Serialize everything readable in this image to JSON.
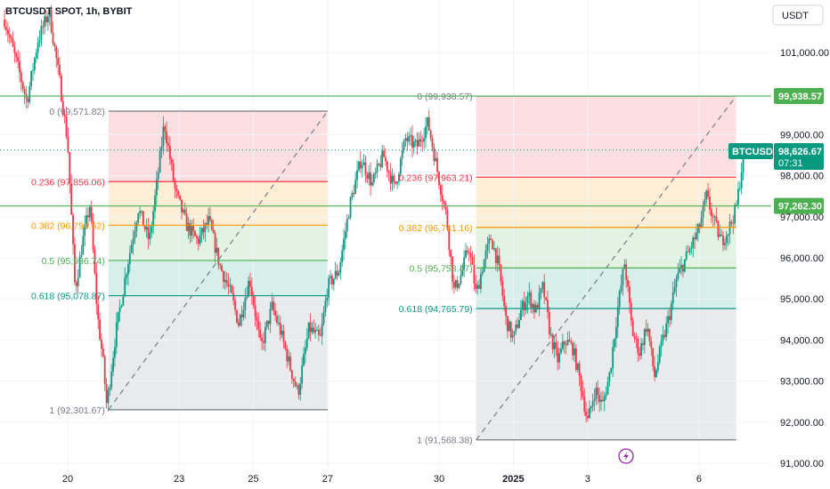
{
  "chart_data": {
    "type": "candlestick",
    "title": "BTCUSDT SPOT, 1h, BYBIT",
    "currency_button": "USDT",
    "symbol_tag": "BTCUSDT",
    "current_price": "98,626.67",
    "countdown": "07:31",
    "price_lines": [
      {
        "value": 99938.57,
        "label": "99,938.57",
        "color": "#4caf50"
      },
      {
        "value": 97262.3,
        "label": "97,262.30",
        "color": "#4caf50"
      }
    ],
    "y_ticks": [
      {
        "value": 101000,
        "label": "101,000.00"
      },
      {
        "value": 99000,
        "label": "99,000.00"
      },
      {
        "value": 98000,
        "label": "98,000.00"
      },
      {
        "value": 97000,
        "label": "97,000.00"
      },
      {
        "value": 96000,
        "label": "96,000.00"
      },
      {
        "value": 95000,
        "label": "95,000.00"
      },
      {
        "value": 94000,
        "label": "94,000.00"
      },
      {
        "value": 93000,
        "label": "93,000.00"
      },
      {
        "value": 92000,
        "label": "92,000.00"
      },
      {
        "value": 91000,
        "label": "91,000.00"
      }
    ],
    "ylim": [
      90800,
      102200
    ],
    "x_ticks": [
      {
        "day": 20,
        "label": "20",
        "bold": false
      },
      {
        "day": 23,
        "label": "23",
        "bold": false
      },
      {
        "day": 25,
        "label": "25",
        "bold": false
      },
      {
        "day": 27,
        "label": "27",
        "bold": false
      },
      {
        "day": 30,
        "label": "30",
        "bold": false
      },
      {
        "day": 32,
        "label": "2025",
        "bold": true
      },
      {
        "day": 34,
        "label": "3",
        "bold": false
      },
      {
        "day": 37,
        "label": "6",
        "bold": false
      }
    ],
    "fib_retracements": [
      {
        "day_start": 21.1,
        "day_end": 27.0,
        "levels": [
          {
            "ratio": 0,
            "value": 99571.82,
            "label": "0 (99,571.82)",
            "color": "#787b86"
          },
          {
            "ratio": 0.236,
            "value": 97856.06,
            "label": "0.236 (97,856.06)",
            "color": "#f23645"
          },
          {
            "ratio": 0.382,
            "value": 96794.62,
            "label": "0.382 (96,794.62)",
            "color": "#ff9800"
          },
          {
            "ratio": 0.5,
            "value": 95936.74,
            "label": "0.5 (95,936.74)",
            "color": "#4caf50"
          },
          {
            "ratio": 0.618,
            "value": 95078.87,
            "label": "0.618 (95,078.87)",
            "color": "#089981"
          },
          {
            "ratio": 1,
            "value": 92301.67,
            "label": "1 (92,301.67)",
            "color": "#787b86"
          }
        ]
      },
      {
        "day_start": 31.0,
        "day_end": 38.0,
        "levels": [
          {
            "ratio": 0,
            "value": 99938.57,
            "label": "0 (99,938.57)",
            "color": "#787b86"
          },
          {
            "ratio": 0.236,
            "value": 97963.21,
            "label": "0.236 (97,963.21)",
            "color": "#f23645"
          },
          {
            "ratio": 0.382,
            "value": 96741.16,
            "label": "0.382 (96,741.16)",
            "color": "#ff9800"
          },
          {
            "ratio": 0.5,
            "value": 95753.47,
            "label": "0.5 (95,753.47)",
            "color": "#4caf50"
          },
          {
            "ratio": 0.618,
            "value": 94765.79,
            "label": "0.618 (94,765.79)",
            "color": "#089981"
          },
          {
            "ratio": 1,
            "value": 91568.38,
            "label": "1 (91,568.38)",
            "color": "#787b86"
          }
        ]
      }
    ],
    "price_path": [
      [
        18.3,
        101800
      ],
      [
        18.7,
        100500
      ],
      [
        18.9,
        99800
      ],
      [
        19.2,
        101300
      ],
      [
        19.5,
        102000
      ],
      [
        19.8,
        100200
      ],
      [
        20.0,
        98800
      ],
      [
        20.1,
        97000
      ],
      [
        20.2,
        95200
      ],
      [
        20.4,
        96400
      ],
      [
        20.6,
        97300
      ],
      [
        20.8,
        94600
      ],
      [
        20.95,
        93500
      ],
      [
        21.05,
        92400
      ],
      [
        21.3,
        94200
      ],
      [
        21.6,
        95800
      ],
      [
        21.9,
        97200
      ],
      [
        22.2,
        96400
      ],
      [
        22.4,
        97800
      ],
      [
        22.6,
        99300
      ],
      [
        22.9,
        97600
      ],
      [
        23.2,
        96800
      ],
      [
        23.5,
        96400
      ],
      [
        23.8,
        96900
      ],
      [
        24.1,
        95800
      ],
      [
        24.4,
        95100
      ],
      [
        24.6,
        94400
      ],
      [
        24.9,
        95500
      ],
      [
        25.2,
        93800
      ],
      [
        25.5,
        94800
      ],
      [
        25.7,
        94300
      ],
      [
        26.0,
        93300
      ],
      [
        26.2,
        92700
      ],
      [
        26.5,
        94300
      ],
      [
        26.8,
        94000
      ],
      [
        27.0,
        95300
      ],
      [
        27.3,
        95700
      ],
      [
        27.6,
        97300
      ],
      [
        27.9,
        98400
      ],
      [
        28.2,
        97800
      ],
      [
        28.5,
        98500
      ],
      [
        28.8,
        97700
      ],
      [
        29.1,
        98900
      ],
      [
        29.4,
        98700
      ],
      [
        29.7,
        99300
      ],
      [
        30.0,
        97900
      ],
      [
        30.2,
        97000
      ],
      [
        30.4,
        95200
      ],
      [
        30.6,
        95600
      ],
      [
        30.8,
        96300
      ],
      [
        31.0,
        95100
      ],
      [
        31.2,
        95900
      ],
      [
        31.4,
        96500
      ],
      [
        31.6,
        95800
      ],
      [
        31.8,
        94500
      ],
      [
        32.0,
        94000
      ],
      [
        32.2,
        94700
      ],
      [
        32.4,
        95100
      ],
      [
        32.6,
        94700
      ],
      [
        32.8,
        95300
      ],
      [
        33.0,
        94100
      ],
      [
        33.2,
        93500
      ],
      [
        33.4,
        94000
      ],
      [
        33.6,
        93800
      ],
      [
        33.8,
        93000
      ],
      [
        34.0,
        92000
      ],
      [
        34.2,
        92800
      ],
      [
        34.4,
        92400
      ],
      [
        34.6,
        93200
      ],
      [
        34.8,
        94700
      ],
      [
        35.0,
        95900
      ],
      [
        35.2,
        94200
      ],
      [
        35.4,
        93700
      ],
      [
        35.6,
        94400
      ],
      [
        35.8,
        93100
      ],
      [
        36.0,
        93900
      ],
      [
        36.2,
        94600
      ],
      [
        36.4,
        95500
      ],
      [
        36.6,
        95900
      ],
      [
        36.8,
        96300
      ],
      [
        37.0,
        96700
      ],
      [
        37.2,
        97500
      ],
      [
        37.4,
        96900
      ],
      [
        37.6,
        96400
      ],
      [
        37.8,
        96700
      ],
      [
        38.0,
        97200
      ],
      [
        38.15,
        98200
      ],
      [
        38.3,
        98700
      ]
    ]
  }
}
